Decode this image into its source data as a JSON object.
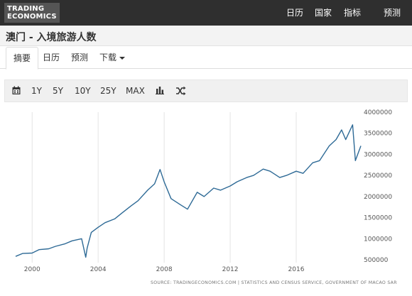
{
  "header": {
    "logo_line1": "TRADING",
    "logo_line2": "ECONOMICS",
    "nav": [
      "日历",
      "国家",
      "指标",
      "预测"
    ]
  },
  "page": {
    "title": "澳门 - 入境旅游人数"
  },
  "tabs": [
    {
      "label": "摘要",
      "active": true
    },
    {
      "label": "日历"
    },
    {
      "label": "预测"
    },
    {
      "label": "下载"
    }
  ],
  "toolbar": {
    "calendar_icon": "calendar-icon",
    "ranges": [
      "1Y",
      "5Y",
      "10Y",
      "25Y",
      "MAX"
    ],
    "bar_icon": "bar-chart-icon",
    "shuffle_icon": "shuffle-icon"
  },
  "chart_data": {
    "type": "line",
    "title": "",
    "xlabel": "",
    "ylabel": "",
    "x_ticks": [
      "2000",
      "2004",
      "2008",
      "2012",
      "2016"
    ],
    "y_ticks": [
      "500000",
      "1000000",
      "1500000",
      "2000000",
      "2500000",
      "3000000",
      "3500000",
      "4000000"
    ],
    "xlim": [
      "1999-01",
      "2019-12"
    ],
    "ylim": [
      500000,
      4000000
    ],
    "grid": "vertical",
    "line_color": "#2e6a96",
    "source": "SOURCE: TRADINGECONOMICS.COM  |  STATISTICS AND CENSUS SERVICE, GOVERNMENT OF MACAO SAR",
    "series": [
      {
        "x": [
          "1999-01",
          "1999-06",
          "2000-01",
          "2000-06",
          "2001-01",
          "2001-06",
          "2002-01",
          "2002-06",
          "2003-01",
          "2003-04",
          "2003-05",
          "2003-08",
          "2004-01",
          "2004-06",
          "2005-01",
          "2005-06",
          "2006-01",
          "2006-06",
          "2007-01",
          "2007-06",
          "2007-10",
          "2008-01",
          "2008-06",
          "2009-01",
          "2009-06",
          "2010-01",
          "2010-06",
          "2011-01",
          "2011-06",
          "2012-01",
          "2012-06",
          "2013-01",
          "2013-06",
          "2014-01",
          "2014-06",
          "2015-01",
          "2015-06",
          "2016-01",
          "2016-06",
          "2017-01",
          "2017-06",
          "2018-01",
          "2018-06",
          "2018-10",
          "2019-01",
          "2019-06",
          "2019-08",
          "2019-12"
        ],
        "values": [
          580000,
          650000,
          660000,
          740000,
          760000,
          820000,
          880000,
          950000,
          1000000,
          560000,
          780000,
          1150000,
          1270000,
          1380000,
          1470000,
          1600000,
          1780000,
          1900000,
          2150000,
          2300000,
          2640000,
          2350000,
          1950000,
          1800000,
          1700000,
          2100000,
          2000000,
          2200000,
          2150000,
          2250000,
          2350000,
          2450000,
          2500000,
          2650000,
          2600000,
          2450000,
          2500000,
          2600000,
          2550000,
          2800000,
          2850000,
          3200000,
          3350000,
          3580000,
          3350000,
          3700000,
          2850000,
          3200000
        ]
      }
    ]
  }
}
